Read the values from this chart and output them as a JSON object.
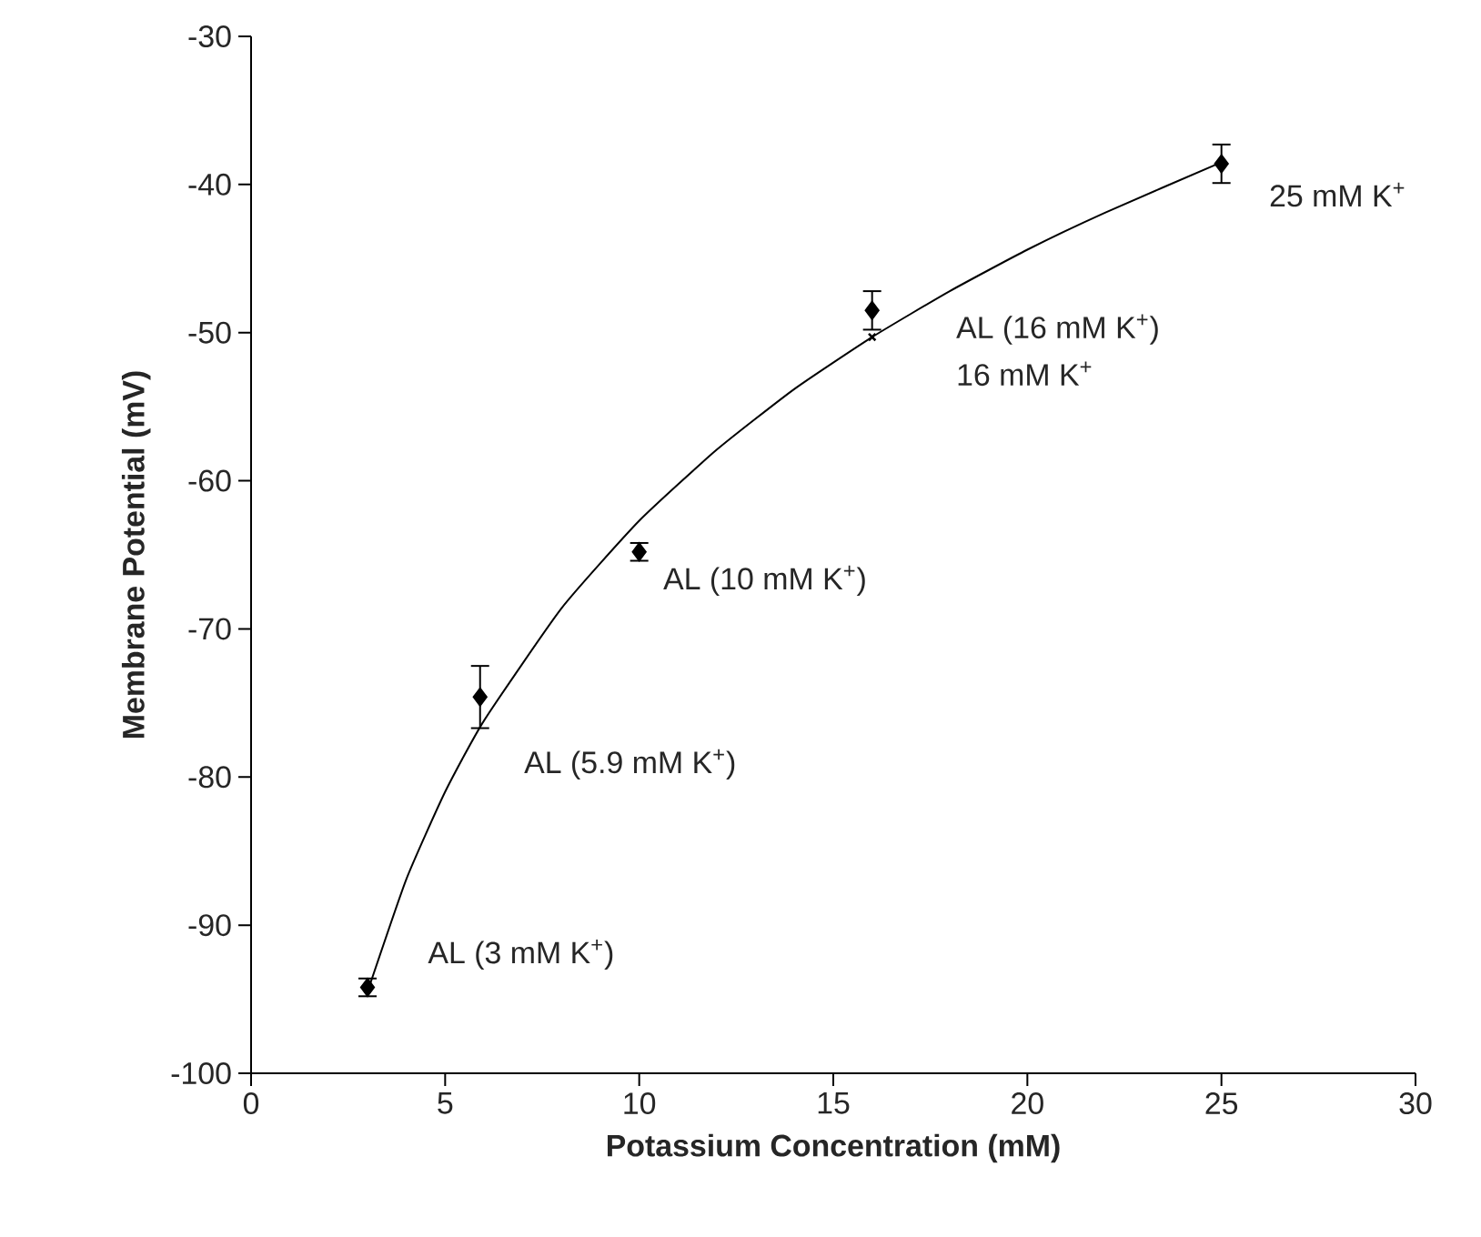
{
  "chart_data": {
    "type": "scatter",
    "xlabel": "Potassium Concentration (mM)",
    "ylabel": "Membrane Potential (mV)",
    "xlim": [
      0,
      30
    ],
    "ylim": [
      -100,
      -30
    ],
    "xticks": [
      0,
      5,
      10,
      15,
      20,
      25,
      30
    ],
    "yticks": [
      -100,
      -90,
      -80,
      -70,
      -60,
      -50,
      -40,
      -30
    ],
    "grid": false,
    "series": [
      {
        "type": "line",
        "color": "#000000",
        "marker": "none",
        "line_style": "solid",
        "x": [
          3,
          4,
          5,
          6,
          8,
          10,
          12,
          14,
          16,
          18,
          20,
          22,
          25
        ],
        "values": [
          -94.5,
          -86.9,
          -81.0,
          -76.2,
          -68.6,
          -62.7,
          -57.9,
          -53.8,
          -50.3,
          -47.2,
          -44.4,
          -41.9,
          -38.5
        ]
      },
      {
        "type": "scatter",
        "color": "#000000",
        "marker": "diamond",
        "x": [
          3,
          5.9,
          10,
          16,
          25
        ],
        "values": [
          -94.2,
          -74.6,
          -64.8,
          -48.5,
          -38.6
        ],
        "errors": [
          0.6,
          2.1,
          0.6,
          1.3,
          1.3
        ]
      },
      {
        "color": "#000000",
        "marker": "cross",
        "x": [
          16
        ],
        "values": [
          -50.3
        ]
      }
    ],
    "annotations": [
      {
        "text": "AL (3 mM K$^{+}$)",
        "x": 3,
        "y": -94.2
      },
      {
        "text": "AL (5.9 mM K$^{+}$)",
        "x": 5.9,
        "y": -74.6
      },
      {
        "text": "AL (10 mM K$^{+}$)",
        "x": 10,
        "y": -64.9
      },
      {
        "text": "AL (16 mM K$^{+}$)",
        "x": 16,
        "y": -50.4
      },
      "16 mM K$^{+}$",
      {
        "text": "25 mM K$^{+}$",
        "x": 25,
        "y": -38.6
      }
    ]
  }
}
